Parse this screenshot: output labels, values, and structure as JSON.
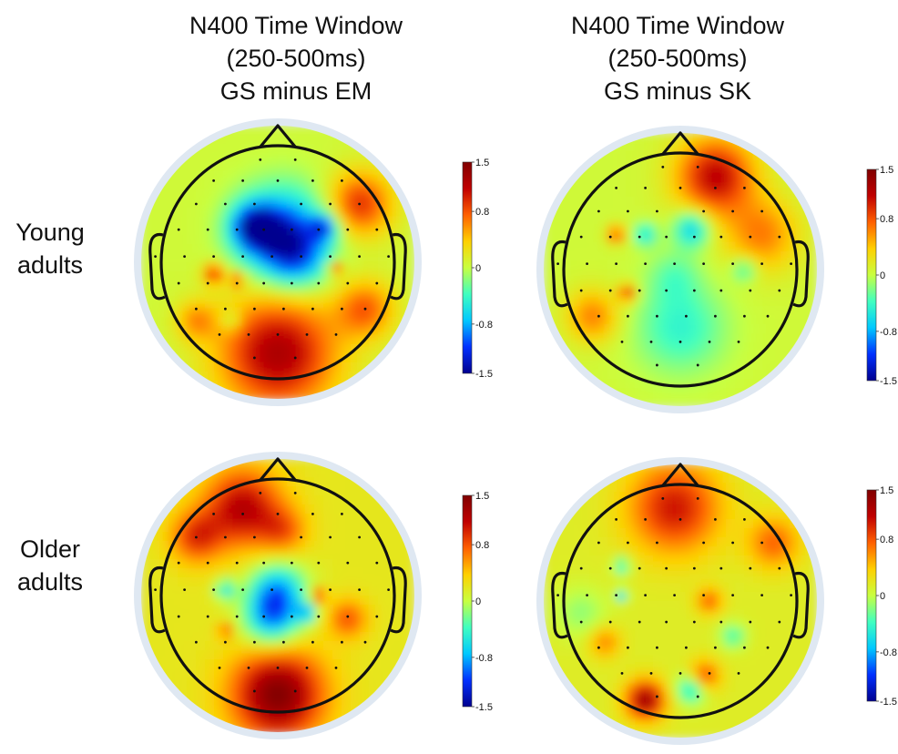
{
  "column_titles": [
    {
      "line1": "N400 Time Window",
      "line2": "(250-500ms)",
      "line3": "GS minus EM"
    },
    {
      "line1": "N400 Time Window",
      "line2": "(250-500ms)",
      "line3": "GS minus SK"
    }
  ],
  "row_labels": [
    {
      "line1": "Young",
      "line2": "adults"
    },
    {
      "line1": "Older",
      "line2": "adults"
    }
  ],
  "colorbar": {
    "ticks": [
      "1.5",
      "0.8",
      "0",
      "-0.8",
      "-1.5"
    ],
    "range": [
      -1.5,
      1.5
    ],
    "colors": [
      "#00008f",
      "#0030ff",
      "#00c8ff",
      "#40ffc0",
      "#c8ff40",
      "#ffd000",
      "#ff6000",
      "#c00000",
      "#800000"
    ]
  },
  "panels": [
    {
      "name": "young-gs-minus-em",
      "base": 0.05,
      "blobs": [
        [
          0.0,
          -0.78,
          0.45,
          1.2
        ],
        [
          0.05,
          0.25,
          0.35,
          -1.1
        ],
        [
          -0.2,
          0.3,
          0.18,
          -1.2
        ],
        [
          0.15,
          0.05,
          0.25,
          -0.7
        ],
        [
          -0.55,
          -0.1,
          0.08,
          0.9
        ],
        [
          0.5,
          -0.05,
          0.06,
          0.8
        ],
        [
          -0.35,
          -0.15,
          0.06,
          0.7
        ],
        [
          0.7,
          0.5,
          0.25,
          0.9
        ],
        [
          0.75,
          -0.4,
          0.22,
          0.7
        ],
        [
          -0.7,
          -0.5,
          0.15,
          0.5
        ],
        [
          0.4,
          0.3,
          0.1,
          -0.9
        ],
        [
          -0.4,
          -0.5,
          0.08,
          -0.4
        ]
      ]
    },
    {
      "name": "young-gs-minus-sk",
      "base": 0.05,
      "blobs": [
        [
          0.3,
          0.8,
          0.3,
          1.1
        ],
        [
          0.0,
          -0.5,
          0.35,
          -0.5
        ],
        [
          0.1,
          0.35,
          0.14,
          -0.8
        ],
        [
          -0.05,
          -0.05,
          0.2,
          -0.3
        ],
        [
          -0.45,
          -0.2,
          0.07,
          0.9
        ],
        [
          -0.55,
          0.3,
          0.07,
          0.8
        ],
        [
          0.7,
          0.3,
          0.28,
          0.6
        ],
        [
          -0.75,
          -0.4,
          0.2,
          0.6
        ],
        [
          -0.3,
          0.3,
          0.09,
          -0.6
        ],
        [
          0.55,
          0.0,
          0.1,
          -0.5
        ]
      ]
    },
    {
      "name": "older-gs-minus-em",
      "base": 0.2,
      "blobs": [
        [
          0.0,
          -0.85,
          0.35,
          1.3
        ],
        [
          -0.3,
          0.75,
          0.3,
          1.0
        ],
        [
          -0.05,
          -0.2,
          0.22,
          -1.0
        ],
        [
          0.0,
          0.05,
          0.22,
          -0.9
        ],
        [
          0.25,
          -0.15,
          0.08,
          -0.7
        ],
        [
          -0.45,
          0.05,
          0.08,
          -0.7
        ],
        [
          0.6,
          -0.2,
          0.15,
          0.6
        ],
        [
          -0.7,
          0.5,
          0.2,
          0.7
        ],
        [
          0.35,
          0.0,
          0.06,
          0.8
        ],
        [
          -0.45,
          -0.3,
          0.06,
          0.6
        ],
        [
          0.05,
          0.55,
          0.18,
          0.5
        ]
      ]
    },
    {
      "name": "older-gs-minus-sk",
      "base": 0.15,
      "blobs": [
        [
          -0.05,
          0.8,
          0.35,
          0.9
        ],
        [
          -0.3,
          -0.85,
          0.15,
          1.2
        ],
        [
          0.2,
          -0.65,
          0.12,
          0.8
        ],
        [
          0.1,
          -0.75,
          0.12,
          -0.8
        ],
        [
          -0.5,
          0.3,
          0.07,
          -0.6
        ],
        [
          -0.5,
          0.05,
          0.05,
          -0.7
        ],
        [
          0.45,
          -0.3,
          0.1,
          -0.5
        ],
        [
          0.25,
          -0.0,
          0.1,
          0.6
        ],
        [
          -0.85,
          -0.1,
          0.2,
          -0.3
        ],
        [
          0.8,
          0.5,
          0.2,
          0.6
        ],
        [
          -0.65,
          -0.35,
          0.12,
          0.5
        ]
      ]
    }
  ]
}
